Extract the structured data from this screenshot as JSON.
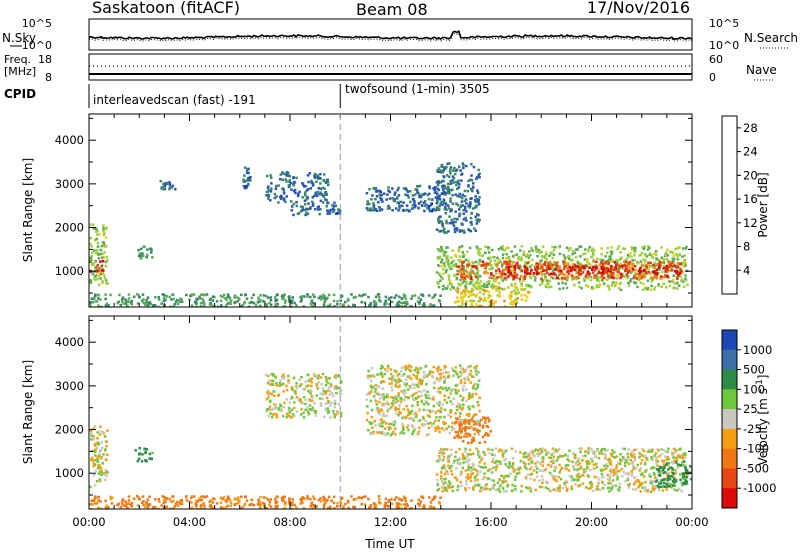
{
  "header": {
    "station": "Saskatoon (fitACF)",
    "beam": "Beam 08",
    "date": "17/Nov/2016"
  },
  "top_panels": {
    "nsky_label": "N.Sky",
    "nsearch_label": "N.Search",
    "noise_ticks": [
      "10^5",
      "10^0"
    ],
    "freq_label": "Freq.",
    "freq_unit": "[MHz]",
    "freq_ticks": [
      "18",
      "8"
    ],
    "nave_label": "Nave",
    "nave_ticks": [
      "60",
      "0"
    ],
    "cpid_label": "CPID",
    "cpid_segments": [
      {
        "label": "interleavedscan (fast) -191",
        "start_hour": 0,
        "end_hour": 10
      },
      {
        "label": "twofsound (1-min) 3505",
        "start_hour": 10,
        "end_hour": 24
      }
    ]
  },
  "colors": {
    "power_scale": [
      "#1428e6",
      "#2a55b4",
      "#378768",
      "#5aaa5a",
      "#a0d23c",
      "#f5c814",
      "#f08c14",
      "#e63c14",
      "#d20a0a"
    ],
    "velocity_scale": [
      "#1e46b4",
      "#3c6eaa",
      "#2d8c46",
      "#6ec83c",
      "#c8c8c0",
      "#f5a014",
      "#f07814",
      "#e64614",
      "#dc0a0a"
    ],
    "ground_scatter": "#c8c8c0"
  },
  "chart_data": [
    {
      "type": "heatmap",
      "name": "power",
      "xlabel": "",
      "ylabel": "Slant Range [km]",
      "xlim": [
        0,
        24
      ],
      "ylim": [
        180,
        4600
      ],
      "yticks": [
        1000,
        2000,
        3000,
        4000
      ],
      "colorbar_label": "Power [dB]",
      "colorbar_ticks": [
        4,
        8,
        12,
        16,
        20,
        24,
        28
      ],
      "colorbar_range": [
        0,
        30
      ],
      "regions": [
        {
          "x": [
            0.0,
            0.6
          ],
          "y": [
            900,
            1300
          ],
          "value": 29
        },
        {
          "x": [
            0.0,
            0.7
          ],
          "y": [
            700,
            2100
          ],
          "value": 14
        },
        {
          "x": [
            1.8,
            2.5
          ],
          "y": [
            1300,
            1600
          ],
          "value": 10
        },
        {
          "x": [
            2.8,
            3.4
          ],
          "y": [
            2900,
            3100
          ],
          "value": 6
        },
        {
          "x": [
            6.1,
            6.4
          ],
          "y": [
            2900,
            3400
          ],
          "value": 6
        },
        {
          "x": [
            7.0,
            9.5
          ],
          "y": [
            2600,
            3300
          ],
          "value": 7
        },
        {
          "x": [
            8.0,
            10.0
          ],
          "y": [
            2300,
            2600
          ],
          "value": 6
        },
        {
          "x": [
            11.0,
            14.3
          ],
          "y": [
            2400,
            3000
          ],
          "value": 6
        },
        {
          "x": [
            13.8,
            15.5
          ],
          "y": [
            1900,
            3500
          ],
          "value": 7
        },
        {
          "x": [
            13.8,
            23.8
          ],
          "y": [
            600,
            1600
          ],
          "value": 14
        },
        {
          "x": [
            14.6,
            23.6
          ],
          "y": [
            850,
            1250
          ],
          "value": 24
        },
        {
          "x": [
            16.5,
            23.5
          ],
          "y": [
            950,
            1150
          ],
          "value": 28
        },
        {
          "x": [
            14.5,
            17.5
          ],
          "y": [
            200,
            700
          ],
          "value": 18
        },
        {
          "x": [
            0.0,
            14.0
          ],
          "y": [
            200,
            500
          ],
          "value": 10
        }
      ]
    },
    {
      "type": "heatmap",
      "name": "velocity",
      "xlabel": "Time UT",
      "ylabel": "Slant Range [km]",
      "xlim": [
        0,
        24
      ],
      "ylim": [
        180,
        4600
      ],
      "xticks": [
        "00:00",
        "04:00",
        "08:00",
        "12:00",
        "16:00",
        "20:00",
        "00:00"
      ],
      "yticks": [
        1000,
        2000,
        3000,
        4000
      ],
      "colorbar_label": "Velocity [m s^-1]",
      "colorbar_ticks": [
        1000,
        500,
        100,
        25,
        -25,
        -100,
        -500,
        -1000
      ],
      "regions": [
        {
          "x": [
            0.0,
            0.7
          ],
          "y": [
            700,
            2100
          ],
          "value": 0
        },
        {
          "x": [
            1.8,
            2.5
          ],
          "y": [
            1300,
            1600
          ],
          "value": 150
        },
        {
          "x": [
            7.0,
            10.0
          ],
          "y": [
            2300,
            3300
          ],
          "value": 0
        },
        {
          "x": [
            11.0,
            15.5
          ],
          "y": [
            1900,
            3500
          ],
          "value": 0
        },
        {
          "x": [
            13.8,
            23.8
          ],
          "y": [
            600,
            1600
          ],
          "value": 0
        },
        {
          "x": [
            22.5,
            24.0
          ],
          "y": [
            700,
            1300
          ],
          "value": 200
        },
        {
          "x": [
            14.5,
            16.0
          ],
          "y": [
            1700,
            2300
          ],
          "value": -300
        },
        {
          "x": [
            0.0,
            14.0
          ],
          "y": [
            200,
            500
          ],
          "value": -150
        }
      ]
    }
  ]
}
